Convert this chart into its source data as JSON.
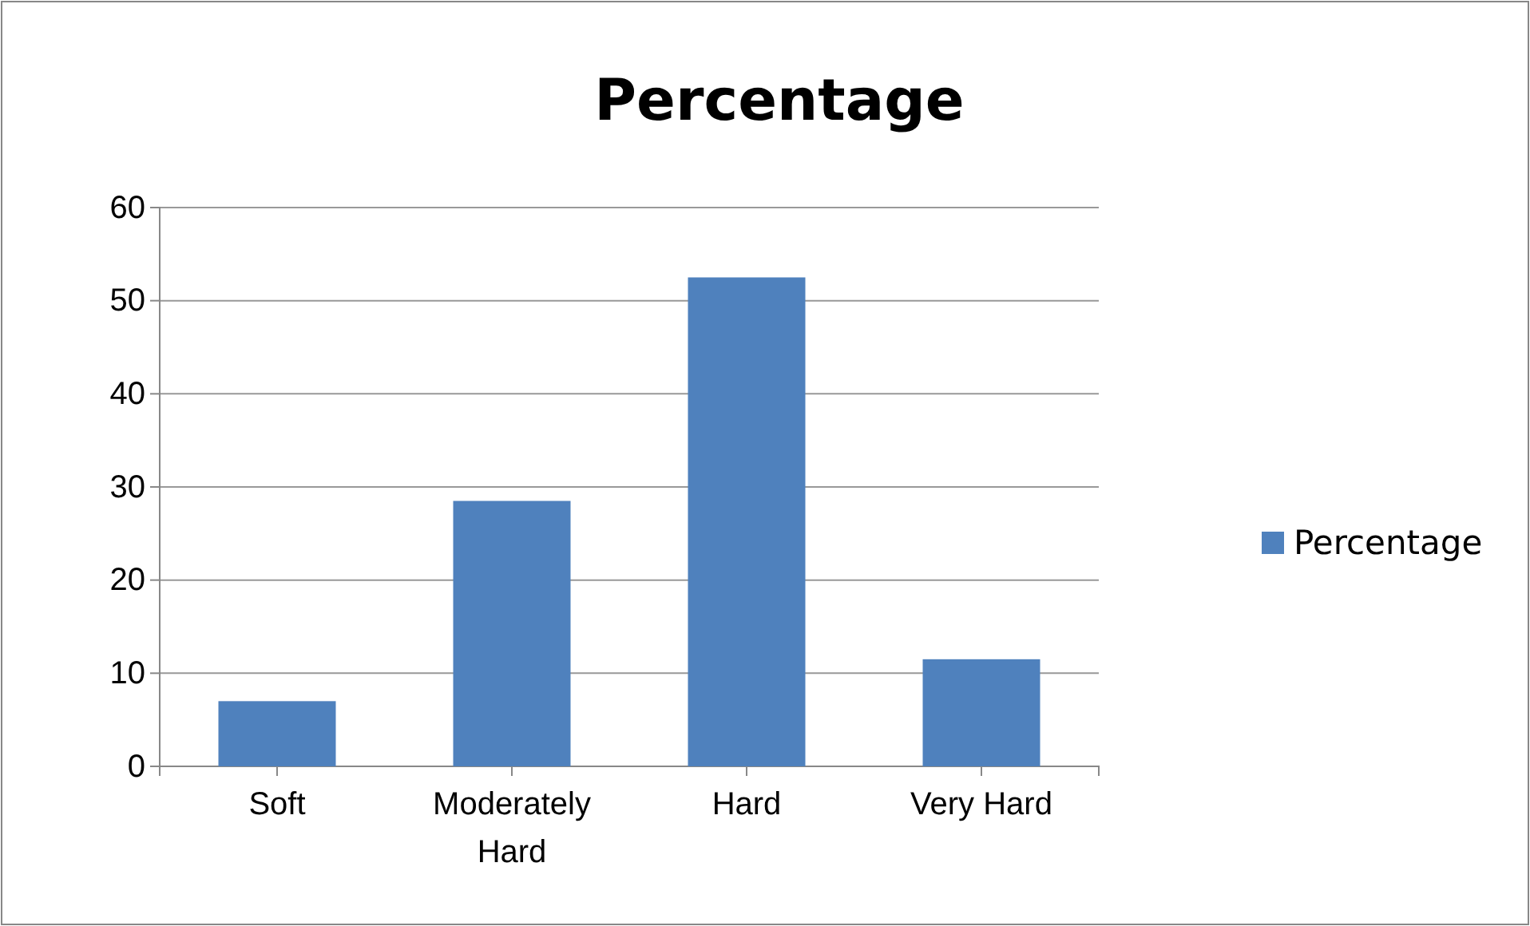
{
  "chart_data": {
    "type": "bar",
    "title": "Percentage",
    "categories": [
      "Soft",
      "Moderately Hard",
      "Hard",
      "Very Hard"
    ],
    "series": [
      {
        "name": "Percentage",
        "color": "#4f81bd",
        "values": [
          7,
          28.5,
          52.5,
          11.5
        ]
      }
    ],
    "ylim": [
      0,
      60
    ],
    "yticks": [
      0,
      10,
      20,
      30,
      40,
      50,
      60
    ],
    "grid": "y",
    "legend": "right"
  }
}
